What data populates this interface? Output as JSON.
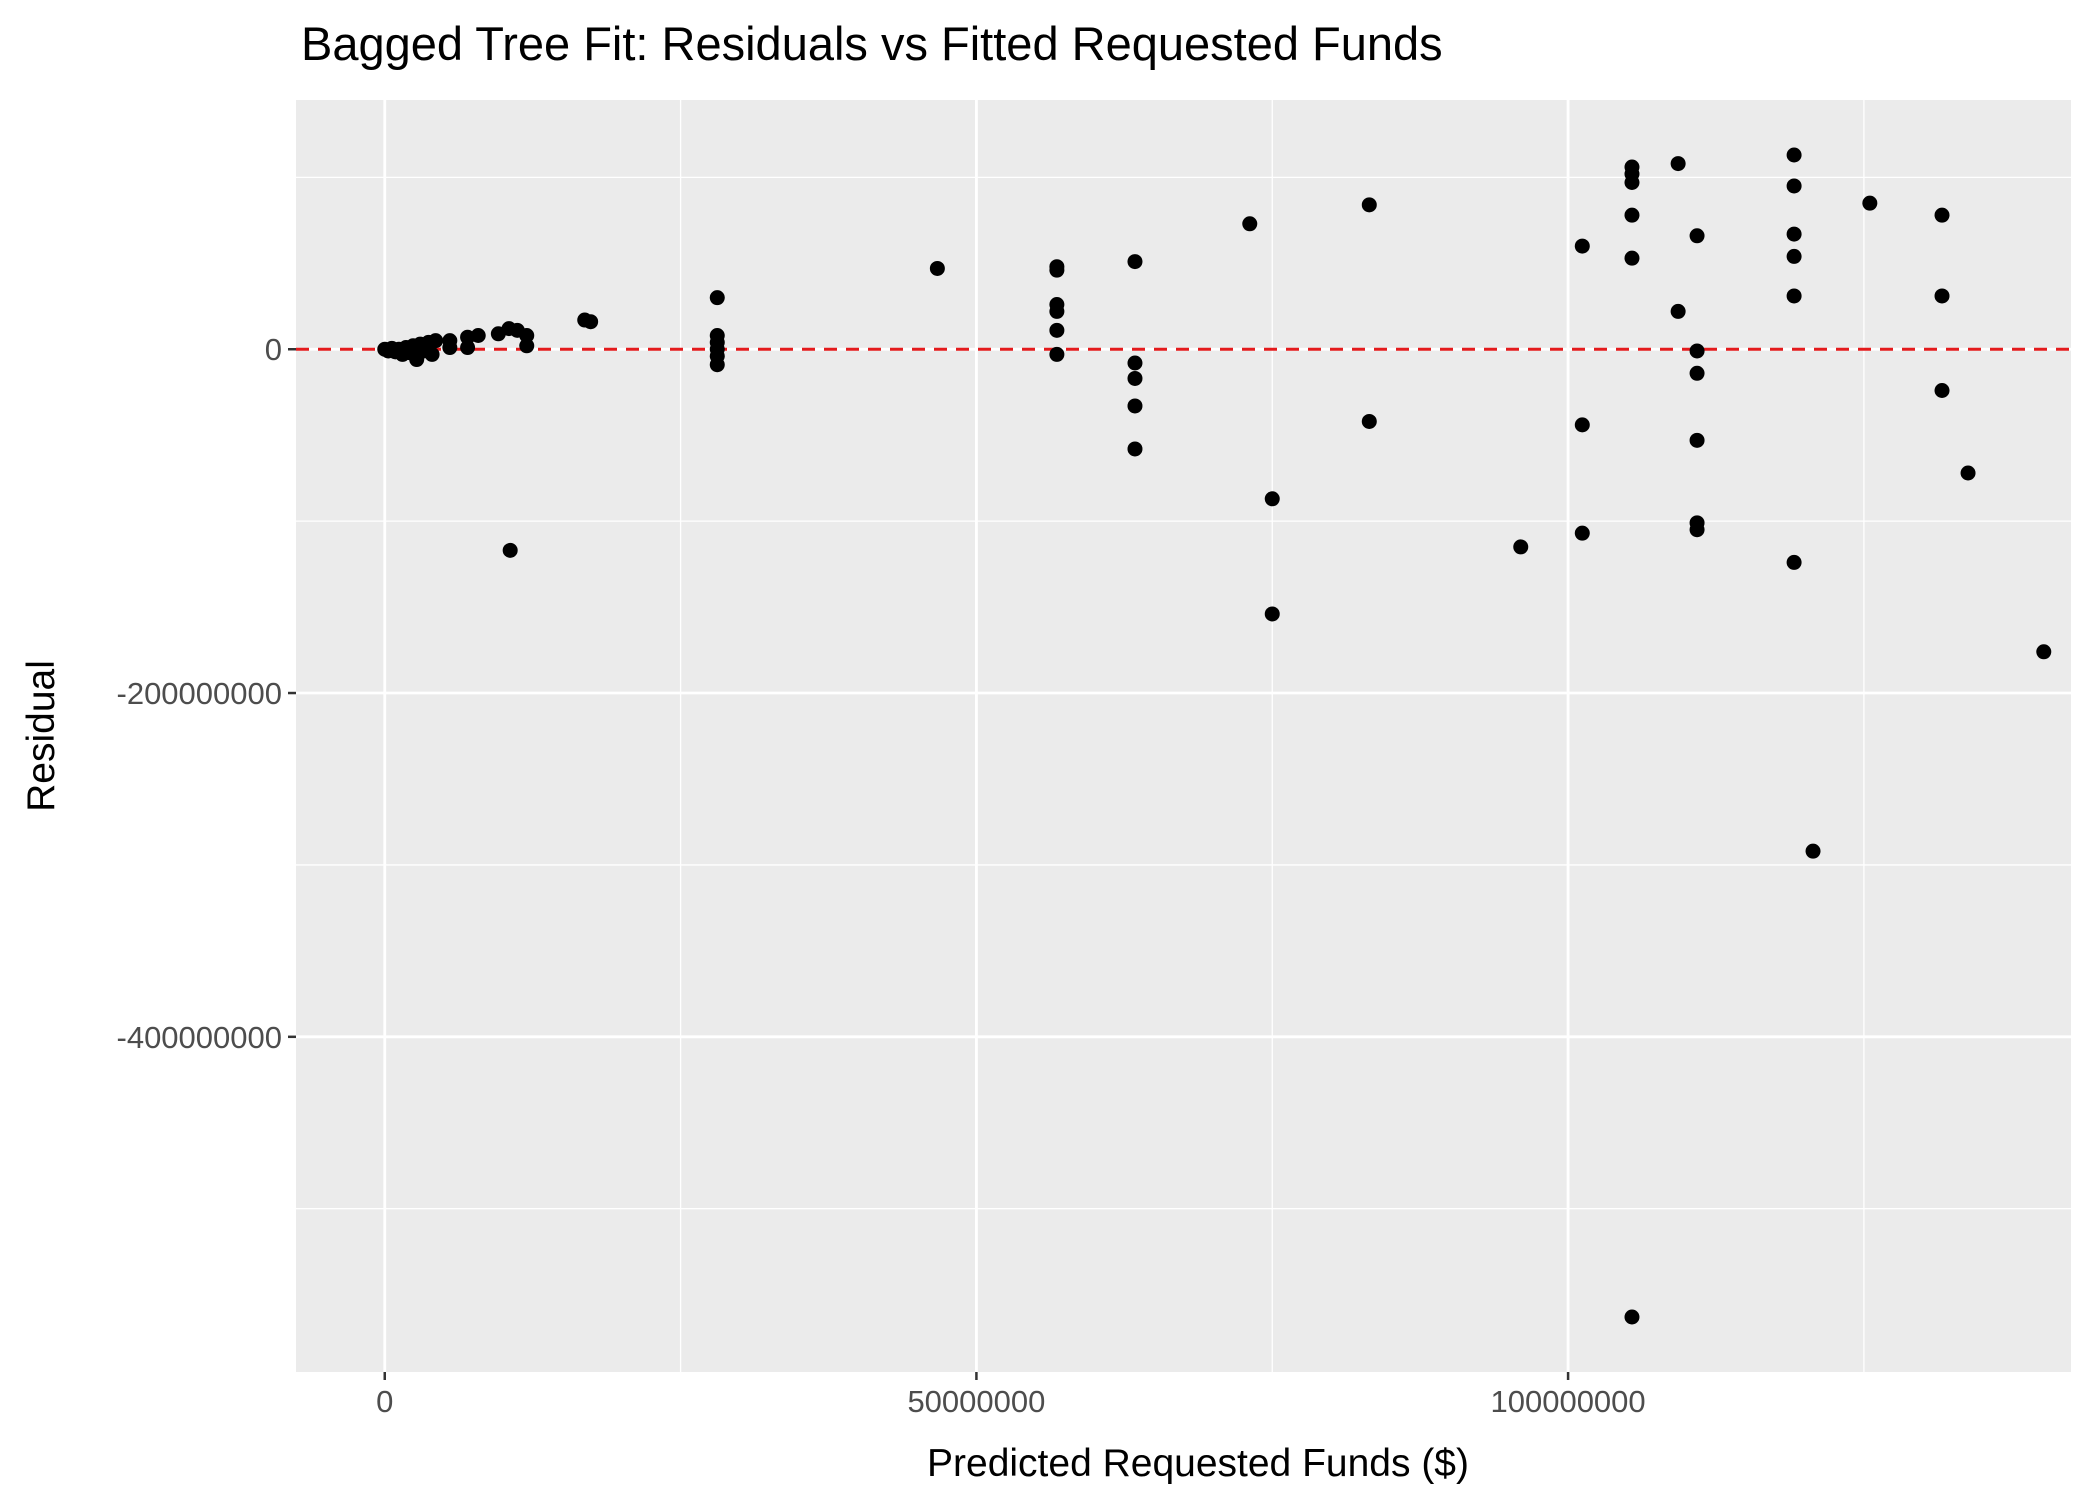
{
  "chart_data": {
    "type": "scatter",
    "title": "Bagged Tree Fit: Residuals vs Fitted Requested Funds",
    "xlabel": "Predicted Requested Funds ($)",
    "ylabel": "Residual",
    "xlim": [
      -7500000,
      142500000
    ],
    "ylim": [
      -595000000,
      145000000
    ],
    "x_ticks": [
      0,
      50000000,
      100000000
    ],
    "x_tick_labels": [
      "0",
      "50000000",
      "100000000"
    ],
    "y_ticks": [
      0,
      -200000000,
      -400000000
    ],
    "y_tick_labels": [
      "0",
      "-200000000",
      "-400000000"
    ],
    "x_minor_ticks": [
      25000000,
      75000000,
      125000000
    ],
    "y_minor_ticks": [
      100000000,
      -100000000,
      -300000000,
      -500000000
    ],
    "grid": true,
    "reference_line": {
      "y": 0,
      "color": "#e41a1c",
      "style": "dashed"
    },
    "point_color": "#000000",
    "background_color": "#ebebeb",
    "points": [
      {
        "x": 0,
        "y": 0
      },
      {
        "x": 300000,
        "y": -1000000
      },
      {
        "x": 600000,
        "y": 500000
      },
      {
        "x": 900000,
        "y": -1500000
      },
      {
        "x": 1200000,
        "y": 0
      },
      {
        "x": 1500000,
        "y": -3000000
      },
      {
        "x": 1800000,
        "y": 1000000
      },
      {
        "x": 2100000,
        "y": -2000000
      },
      {
        "x": 2400000,
        "y": 2000000
      },
      {
        "x": 2700000,
        "y": -6000000
      },
      {
        "x": 3000000,
        "y": 3000000
      },
      {
        "x": 3300000,
        "y": -1000000
      },
      {
        "x": 3700000,
        "y": 4000000
      },
      {
        "x": 4000000,
        "y": -3000000
      },
      {
        "x": 4300000,
        "y": 5000000
      },
      {
        "x": 5500000,
        "y": 5000000
      },
      {
        "x": 5500000,
        "y": 1000000
      },
      {
        "x": 7000000,
        "y": 7000000
      },
      {
        "x": 7000000,
        "y": 1000000
      },
      {
        "x": 7900000,
        "y": 8000000
      },
      {
        "x": 9600000,
        "y": 9000000
      },
      {
        "x": 10500000,
        "y": 12000000
      },
      {
        "x": 11200000,
        "y": 11000000
      },
      {
        "x": 12000000,
        "y": 8000000
      },
      {
        "x": 12000000,
        "y": 2000000
      },
      {
        "x": 10600000,
        "y": -117000000
      },
      {
        "x": 16900000,
        "y": 17000000
      },
      {
        "x": 17400000,
        "y": 16000000
      },
      {
        "x": 28100000,
        "y": 30000000
      },
      {
        "x": 28100000,
        "y": 8000000
      },
      {
        "x": 28100000,
        "y": 4000000
      },
      {
        "x": 28100000,
        "y": 0
      },
      {
        "x": 28100000,
        "y": -4000000
      },
      {
        "x": 28100000,
        "y": -9000000
      },
      {
        "x": 46700000,
        "y": 47000000
      },
      {
        "x": 56800000,
        "y": 48000000
      },
      {
        "x": 56800000,
        "y": 46000000
      },
      {
        "x": 56800000,
        "y": 26000000
      },
      {
        "x": 56800000,
        "y": 22000000
      },
      {
        "x": 56800000,
        "y": 11000000
      },
      {
        "x": 56800000,
        "y": -3000000
      },
      {
        "x": 63400000,
        "y": 51000000
      },
      {
        "x": 63400000,
        "y": -8000000
      },
      {
        "x": 63400000,
        "y": -17000000
      },
      {
        "x": 63400000,
        "y": -33000000
      },
      {
        "x": 63400000,
        "y": -58000000
      },
      {
        "x": 73100000,
        "y": 73000000
      },
      {
        "x": 75000000,
        "y": -87000000
      },
      {
        "x": 75000000,
        "y": -154000000
      },
      {
        "x": 83200000,
        "y": 84000000
      },
      {
        "x": 83200000,
        "y": -42000000
      },
      {
        "x": 96000000,
        "y": -115000000
      },
      {
        "x": 101200000,
        "y": 60000000
      },
      {
        "x": 101200000,
        "y": -44000000
      },
      {
        "x": 101200000,
        "y": -107000000
      },
      {
        "x": 105400000,
        "y": 106000000
      },
      {
        "x": 105400000,
        "y": 102000000
      },
      {
        "x": 105400000,
        "y": 97000000
      },
      {
        "x": 105400000,
        "y": 78000000
      },
      {
        "x": 105400000,
        "y": 53000000
      },
      {
        "x": 105400000,
        "y": -563000000
      },
      {
        "x": 109300000,
        "y": 108000000
      },
      {
        "x": 109300000,
        "y": 22000000
      },
      {
        "x": 110900000,
        "y": 66000000
      },
      {
        "x": 110900000,
        "y": -1000000
      },
      {
        "x": 110900000,
        "y": -14000000
      },
      {
        "x": 110900000,
        "y": -53000000
      },
      {
        "x": 110900000,
        "y": -101000000
      },
      {
        "x": 110900000,
        "y": -105000000
      },
      {
        "x": 119100000,
        "y": 113000000
      },
      {
        "x": 119100000,
        "y": 95000000
      },
      {
        "x": 119100000,
        "y": 67000000
      },
      {
        "x": 119100000,
        "y": 54000000
      },
      {
        "x": 119100000,
        "y": 31000000
      },
      {
        "x": 119100000,
        "y": -124000000
      },
      {
        "x": 120700000,
        "y": -292000000
      },
      {
        "x": 125500000,
        "y": 85000000
      },
      {
        "x": 131600000,
        "y": 78000000
      },
      {
        "x": 131600000,
        "y": 31000000
      },
      {
        "x": 131600000,
        "y": -24000000
      },
      {
        "x": 133800000,
        "y": -72000000
      },
      {
        "x": 140200000,
        "y": -176000000
      }
    ]
  }
}
